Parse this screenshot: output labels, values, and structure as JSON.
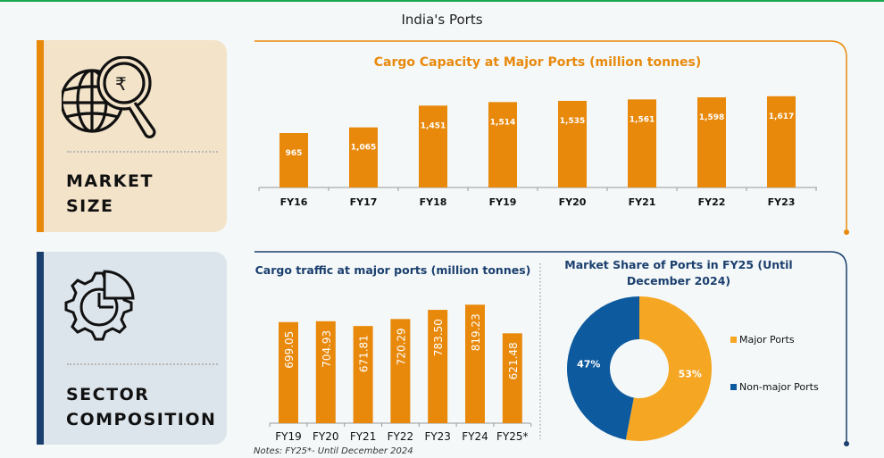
{
  "page_title": "India's Ports",
  "cards": [
    {
      "label_line1": "MARKET",
      "label_line2": "SIZE",
      "icon": "globe-magnifier-rupee-icon",
      "accent": "#e8890c"
    },
    {
      "label_line1": "SECTOR",
      "label_line2": "COMPOSITION",
      "icon": "gear-pie-chart-icon",
      "accent": "#1b3f6e"
    }
  ],
  "notes": "Notes: FY25*- Until December 2024",
  "chart_data": [
    {
      "type": "bar",
      "title": "Cargo Capacity at Major Ports (million tonnes)",
      "categories": [
        "FY16",
        "FY17",
        "FY18",
        "FY19",
        "FY20",
        "FY21",
        "FY22",
        "FY23"
      ],
      "values": [
        965,
        1065,
        1451,
        1514,
        1535,
        1561,
        1598,
        1617
      ],
      "labels": [
        "965",
        "1,065",
        "1,451",
        "1,514",
        "1,535",
        "1,561",
        "1,598",
        "1,617"
      ],
      "color": "#e8890c",
      "grid": false
    },
    {
      "type": "bar",
      "title": "Cargo traffic at major ports (million tonnes)",
      "categories": [
        "FY19",
        "FY20",
        "FY21",
        "FY22",
        "FY23",
        "FY24",
        "FY25*"
      ],
      "values": [
        699.05,
        704.93,
        671.81,
        720.29,
        783.5,
        819.23,
        621.48
      ],
      "labels": [
        "699.05",
        "704.93",
        "671.81",
        "720.29",
        "783.50",
        "819.23",
        "621.48"
      ],
      "color": "#e8890c",
      "grid": false
    },
    {
      "type": "pie",
      "title": "Market Share of Ports in FY25 (Until December 2024)",
      "slices": [
        {
          "name": "Major Ports",
          "value": 53,
          "label": "53%",
          "color": "#f5a623"
        },
        {
          "name": "Non-major Ports",
          "value": 47,
          "label": "47%",
          "color": "#0e5a9e"
        }
      ],
      "donut": true,
      "legend": "right"
    }
  ]
}
